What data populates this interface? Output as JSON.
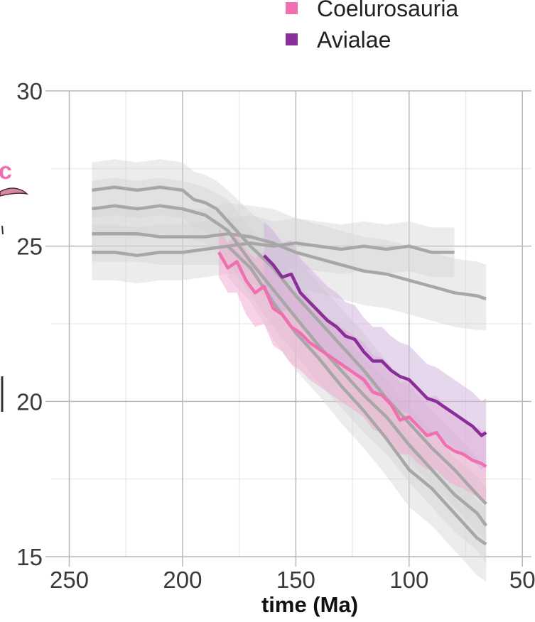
{
  "chart_data": {
    "type": "line",
    "title": "",
    "xlabel": "time (Ma)",
    "ylabel": "",
    "x_reversed": true,
    "xlim": [
      258,
      46
    ],
    "ylim": [
      15,
      30
    ],
    "x_ticks": [
      250,
      200,
      150,
      100,
      50
    ],
    "x_tick_labels": [
      "250",
      "200",
      "150",
      "100",
      "50"
    ],
    "y_ticks": [
      15,
      20,
      25,
      30
    ],
    "y_tick_labels": [
      "15",
      "20",
      "25",
      "30"
    ],
    "grid": true,
    "legend": {
      "position": "top",
      "entries": [
        {
          "label": "Coelurosauria",
          "color": "#ef6fb0"
        },
        {
          "label": "Avialae",
          "color": "#8a2f9a"
        }
      ]
    },
    "series": [
      {
        "color": "#a7a7a7",
        "band_color": "#d4d4d4",
        "x": [
          240,
          230,
          220,
          210,
          200,
          190,
          180,
          170,
          160,
          150,
          140,
          130,
          120,
          110,
          100,
          90,
          80
        ],
        "y": [
          24.8,
          24.8,
          24.7,
          24.8,
          24.8,
          24.9,
          25.0,
          25.1,
          25.0,
          25.1,
          25.0,
          24.9,
          25.0,
          24.9,
          25.0,
          24.8,
          24.8
        ],
        "lower": [
          23.9,
          23.9,
          23.8,
          23.9,
          23.9,
          24.0,
          24.1,
          24.2,
          24.2,
          24.3,
          24.2,
          24.1,
          24.2,
          24.1,
          24.2,
          24.0,
          24.0
        ],
        "upper": [
          25.7,
          25.7,
          25.6,
          25.7,
          25.7,
          25.8,
          25.9,
          26.0,
          25.8,
          25.9,
          25.8,
          25.7,
          25.8,
          25.7,
          25.8,
          25.6,
          25.6
        ]
      },
      {
        "color": "#a7a7a7",
        "band_color": "#d4d4d4",
        "x": [
          240,
          230,
          220,
          210,
          200,
          190,
          180,
          170,
          160,
          150,
          140,
          130,
          120,
          110,
          100,
          90,
          80,
          70,
          66
        ],
        "y": [
          25.4,
          25.4,
          25.4,
          25.3,
          25.3,
          25.3,
          25.4,
          25.3,
          25.1,
          24.8,
          24.6,
          24.4,
          24.2,
          24.1,
          23.9,
          23.7,
          23.5,
          23.4,
          23.3
        ],
        "lower": [
          24.5,
          24.5,
          24.5,
          24.4,
          24.4,
          24.4,
          24.4,
          24.3,
          24.0,
          23.7,
          23.5,
          23.3,
          23.1,
          23.0,
          22.8,
          22.6,
          22.4,
          22.3,
          22.3
        ],
        "upper": [
          26.3,
          26.3,
          26.3,
          26.2,
          26.2,
          26.2,
          26.4,
          26.3,
          26.2,
          25.9,
          25.7,
          25.5,
          25.3,
          25.2,
          25.0,
          24.8,
          24.6,
          24.5,
          24.4
        ]
      },
      {
        "color": "#a7a7a7",
        "band_color": "#d4d4d4",
        "x": [
          240,
          230,
          220,
          210,
          200,
          195,
          190,
          185,
          180,
          170,
          160,
          150,
          140,
          130,
          120,
          110,
          100,
          90,
          80,
          70,
          66
        ],
        "y": [
          26.8,
          26.9,
          26.8,
          26.9,
          26.8,
          26.5,
          26.4,
          26.2,
          25.8,
          25.0,
          24.3,
          23.4,
          22.6,
          21.8,
          21.0,
          20.1,
          19.3,
          18.5,
          17.8,
          17.0,
          16.7
        ],
        "lower": [
          25.9,
          26.0,
          25.9,
          26.0,
          25.9,
          25.6,
          25.5,
          25.3,
          24.8,
          23.9,
          23.1,
          22.2,
          21.4,
          20.6,
          19.8,
          18.9,
          18.1,
          17.3,
          16.6,
          15.8,
          15.5
        ],
        "upper": [
          27.7,
          27.8,
          27.7,
          27.8,
          27.7,
          27.4,
          27.3,
          27.1,
          26.8,
          26.1,
          25.5,
          24.6,
          23.8,
          23.0,
          22.2,
          21.3,
          20.5,
          19.7,
          19.0,
          18.2,
          17.9
        ]
      },
      {
        "color": "#a7a7a7",
        "band_color": "#d4d4d4",
        "x": [
          240,
          230,
          220,
          210,
          200,
          190,
          180,
          170,
          160,
          150,
          140,
          130,
          120,
          110,
          100,
          90,
          80,
          70,
          66
        ],
        "y": [
          26.2,
          26.3,
          26.2,
          26.3,
          26.2,
          26.0,
          25.5,
          24.5,
          23.6,
          22.7,
          21.8,
          21.0,
          20.2,
          19.5,
          18.6,
          17.8,
          17.0,
          16.4,
          16.0
        ],
        "lower": [
          25.3,
          25.4,
          25.3,
          25.4,
          25.3,
          25.1,
          24.5,
          23.4,
          22.4,
          21.5,
          20.6,
          19.8,
          19.0,
          18.3,
          17.4,
          16.6,
          15.8,
          15.2,
          14.8
        ],
        "upper": [
          27.1,
          27.2,
          27.1,
          27.2,
          27.1,
          26.9,
          26.5,
          25.6,
          24.8,
          23.9,
          23.0,
          22.2,
          21.4,
          20.7,
          19.8,
          19.0,
          18.2,
          17.6,
          17.2
        ]
      },
      {
        "color": "#a7a7a7",
        "band_color": "#d4d4d4",
        "x": [
          180,
          170,
          160,
          150,
          140,
          130,
          120,
          110,
          100,
          90,
          80,
          70,
          66
        ],
        "y": [
          25.0,
          24.3,
          23.2,
          22.2,
          21.4,
          20.5,
          19.7,
          18.8,
          17.8,
          17.2,
          16.4,
          15.6,
          15.4
        ],
        "lower": [
          24.0,
          23.2,
          22.0,
          21.0,
          20.2,
          19.3,
          18.5,
          17.6,
          16.6,
          16.0,
          15.2,
          14.4,
          14.2
        ],
        "upper": [
          26.0,
          25.4,
          24.4,
          23.4,
          22.6,
          21.7,
          20.9,
          20.0,
          19.0,
          18.4,
          17.6,
          16.8,
          16.6
        ]
      },
      {
        "name": "Coelurosauria",
        "color": "#ef6fb0",
        "band_color": "#f2a6cf",
        "x": [
          184,
          180,
          176,
          172,
          168,
          164,
          160,
          156,
          152,
          148,
          144,
          140,
          136,
          132,
          128,
          124,
          120,
          116,
          112,
          108,
          104,
          100,
          96,
          92,
          88,
          84,
          80,
          76,
          72,
          68,
          66
        ],
        "y": [
          24.8,
          24.3,
          24.5,
          23.9,
          23.5,
          23.7,
          23.0,
          22.8,
          22.4,
          22.2,
          21.9,
          21.7,
          21.5,
          21.3,
          21.1,
          20.9,
          20.7,
          20.3,
          20.2,
          19.9,
          19.4,
          19.5,
          19.2,
          18.9,
          19.0,
          18.6,
          18.4,
          18.3,
          18.1,
          18.0,
          17.9
        ],
        "lower": [
          24.0,
          23.5,
          23.5,
          22.8,
          22.4,
          22.5,
          21.8,
          21.6,
          21.2,
          21.0,
          20.7,
          20.5,
          20.3,
          20.1,
          19.9,
          19.7,
          19.5,
          19.1,
          19.0,
          18.7,
          18.3,
          18.3,
          18.0,
          17.8,
          17.8,
          17.5,
          17.3,
          17.2,
          17.0,
          16.9,
          16.8
        ],
        "upper": [
          25.6,
          25.1,
          25.4,
          24.9,
          24.6,
          24.8,
          24.2,
          24.0,
          23.6,
          23.4,
          23.1,
          22.9,
          22.7,
          22.5,
          22.3,
          22.1,
          21.9,
          21.5,
          21.4,
          21.1,
          20.6,
          20.7,
          20.4,
          20.1,
          20.2,
          19.8,
          19.6,
          19.4,
          19.2,
          19.1,
          19.0
        ]
      },
      {
        "name": "Avialae",
        "color": "#8a2f9a",
        "band_color": "#cdb0dc",
        "x": [
          164,
          160,
          156,
          152,
          148,
          144,
          140,
          136,
          132,
          128,
          124,
          120,
          116,
          112,
          108,
          104,
          100,
          96,
          92,
          88,
          84,
          80,
          76,
          72,
          68,
          66
        ],
        "y": [
          24.7,
          24.4,
          24.0,
          24.1,
          23.5,
          23.2,
          22.9,
          22.6,
          22.4,
          22.1,
          22.0,
          21.6,
          21.3,
          21.3,
          21.0,
          20.8,
          20.7,
          20.4,
          20.1,
          20.0,
          19.8,
          19.6,
          19.4,
          19.2,
          18.9,
          19.0
        ],
        "lower": [
          23.6,
          23.3,
          22.9,
          23.0,
          22.4,
          22.1,
          21.8,
          21.5,
          21.3,
          21.0,
          20.9,
          20.5,
          20.2,
          20.2,
          19.9,
          19.7,
          19.6,
          19.3,
          19.0,
          18.9,
          18.7,
          18.5,
          18.3,
          18.1,
          17.8,
          17.9
        ],
        "upper": [
          25.8,
          25.5,
          25.1,
          25.2,
          24.6,
          24.3,
          24.0,
          23.7,
          23.5,
          23.2,
          23.1,
          22.7,
          22.4,
          22.4,
          22.1,
          21.9,
          21.8,
          21.5,
          21.2,
          21.1,
          20.9,
          20.7,
          20.5,
          20.3,
          20.0,
          20.1
        ]
      }
    ]
  }
}
